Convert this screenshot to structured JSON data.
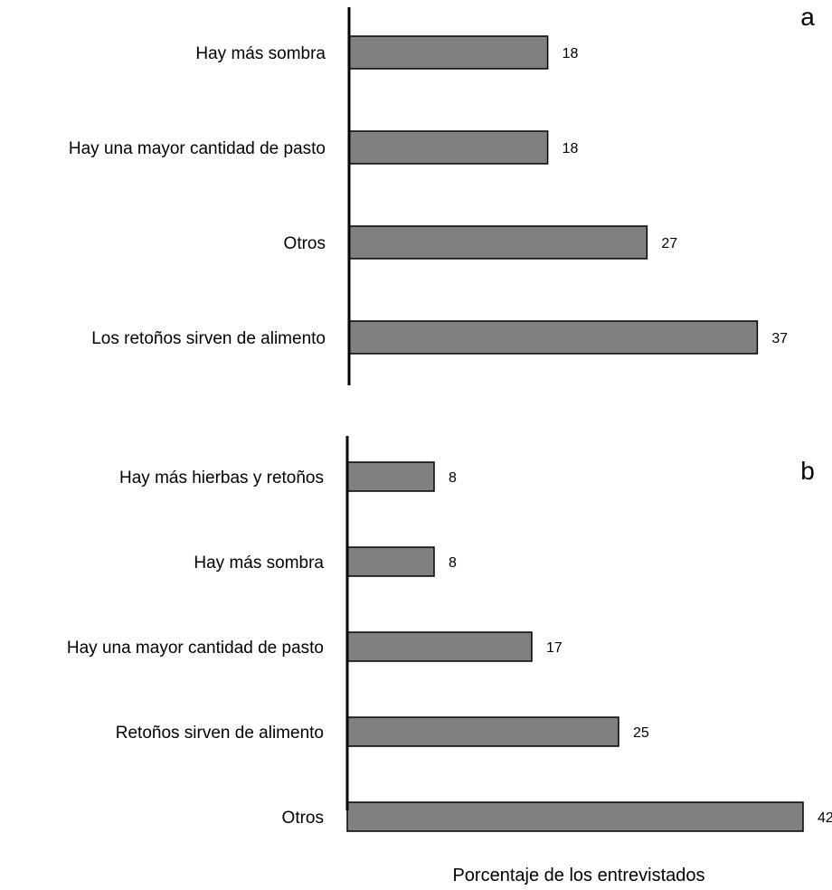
{
  "chart_data": [
    {
      "type": "bar",
      "orientation": "horizontal",
      "panel_label": "a",
      "categories": [
        "Hay más sombra",
        "Hay una mayor cantidad de pasto",
        "Otros",
        "Los retoños sirven de alimento"
      ],
      "values": [
        18,
        18,
        27,
        37
      ],
      "data_labels": [
        "18",
        "18",
        "27",
        "37"
      ],
      "xlim": [
        0,
        50
      ]
    },
    {
      "type": "bar",
      "orientation": "horizontal",
      "panel_label": "b",
      "categories": [
        "Hay más hierbas y retoños",
        "Hay más sombra",
        "Hay una mayor cantidad de pasto",
        "Retoños sirven de alimento",
        "Otros"
      ],
      "values": [
        8,
        8,
        17,
        25,
        42
      ],
      "data_labels": [
        "8",
        "8",
        "17",
        "25",
        "42"
      ],
      "xlim": [
        0,
        50
      ],
      "xlabel": "Porcentaje de los entrevistados"
    }
  ]
}
